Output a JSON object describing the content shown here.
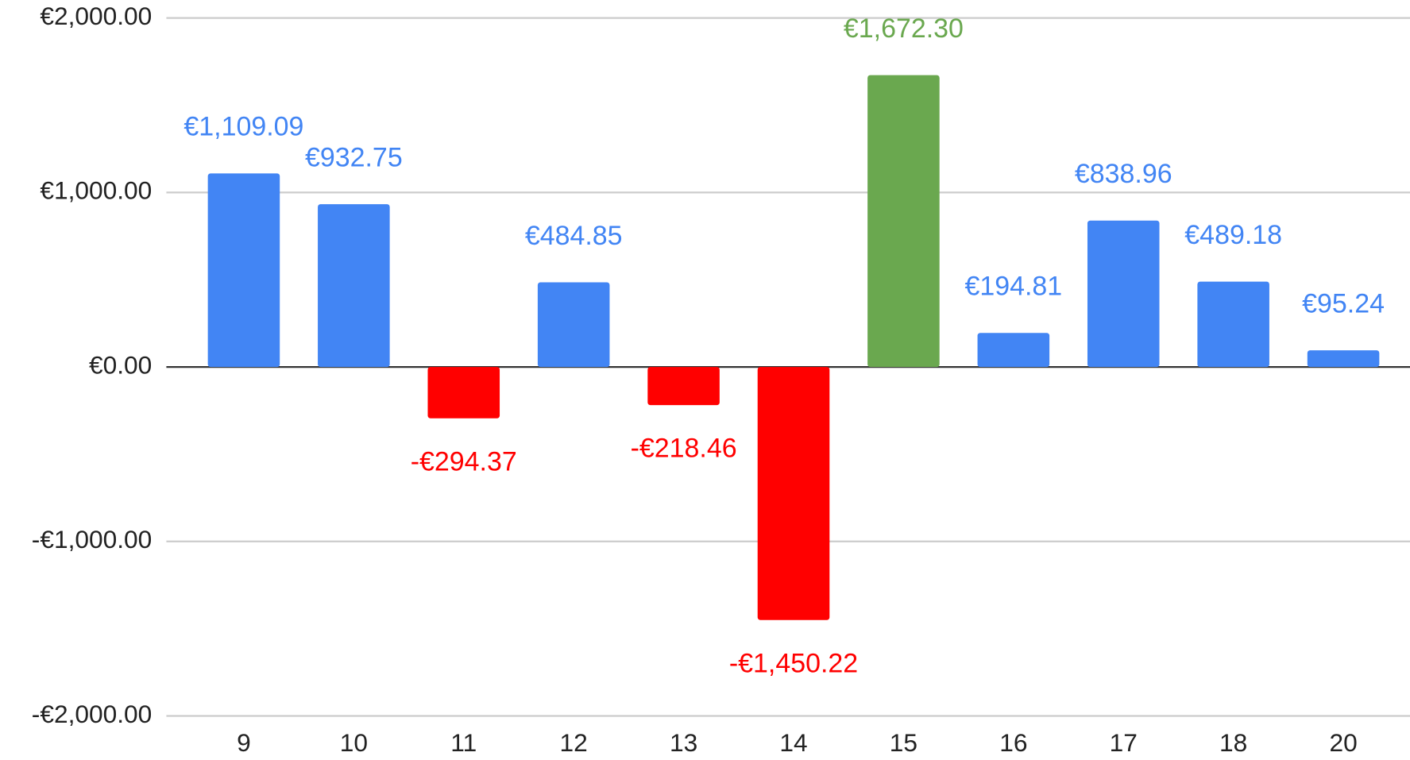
{
  "chart_data": {
    "type": "bar",
    "categories": [
      "9",
      "10",
      "11",
      "12",
      "13",
      "14",
      "15",
      "16",
      "17",
      "18",
      "20"
    ],
    "values": [
      1109.09,
      932.75,
      -294.37,
      484.85,
      -218.46,
      -1450.22,
      1672.3,
      194.81,
      838.96,
      489.18,
      95.24
    ],
    "value_labels": [
      "€1,109.09",
      "€932.75",
      "-€294.37",
      "€484.85",
      "-€218.46",
      "-€1,450.22",
      "€1,672.30",
      "€194.81",
      "€838.96",
      "€489.18",
      "€95.24"
    ],
    "colors": [
      "#4285f4",
      "#4285f4",
      "#ff0000",
      "#4285f4",
      "#ff0000",
      "#ff0000",
      "#6aa84f",
      "#4285f4",
      "#4285f4",
      "#4285f4",
      "#4285f4"
    ],
    "ylim": [
      -2000,
      2000
    ],
    "yticks": [
      {
        "value": -2000,
        "label": "-€2,000.00"
      },
      {
        "value": -1000,
        "label": "-€1,000.00"
      },
      {
        "value": 0,
        "label": "€0.00"
      },
      {
        "value": 1000,
        "label": "€1,000.00"
      },
      {
        "value": 2000,
        "label": "€2,000.00"
      }
    ],
    "grid": true
  }
}
